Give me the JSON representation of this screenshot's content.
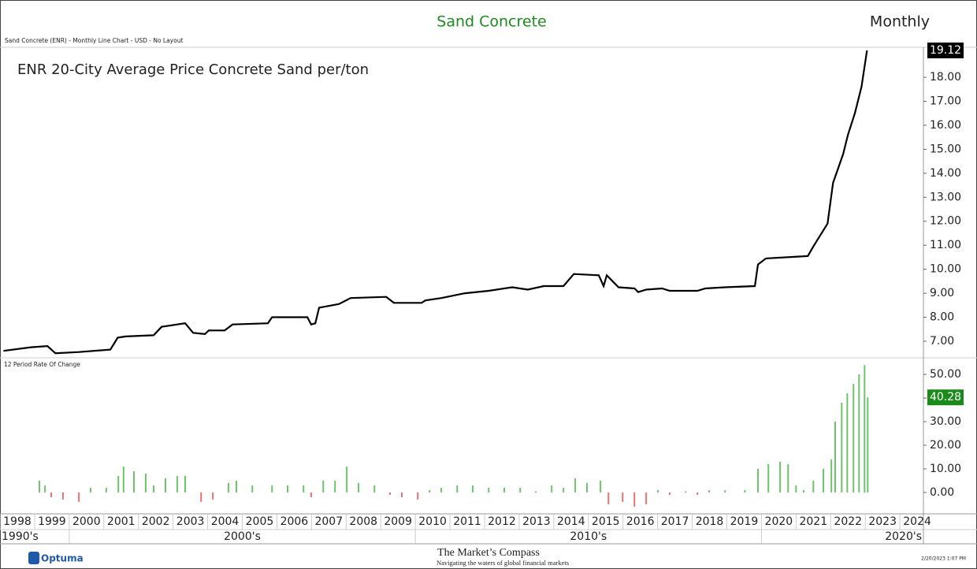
{
  "header": {
    "chart_title": "Sand Concrete",
    "period": "Monthly",
    "info": "Sand Concrete (ENR) - Monthly Line Chart - USD - No Layout"
  },
  "chart_data": [
    {
      "type": "line",
      "title": "ENR 20-City Average Price Concrete Sand per/ton",
      "color": "#000000",
      "xlim": [
        1998,
        2024.68
      ],
      "ylim": [
        6.31,
        19.25
      ],
      "yticks": [
        {
          "value": 7,
          "label": "7.00"
        },
        {
          "value": 8,
          "label": "8.00"
        },
        {
          "value": 9,
          "label": "9.00"
        },
        {
          "value": 10,
          "label": "10.00"
        },
        {
          "value": 11,
          "label": "11.00"
        },
        {
          "value": 12,
          "label": "12.00"
        },
        {
          "value": 13,
          "label": "13.00"
        },
        {
          "value": 14,
          "label": "14.00"
        },
        {
          "value": 15,
          "label": "15.00"
        },
        {
          "value": 16,
          "label": "16.00"
        },
        {
          "value": 17,
          "label": "17.00"
        },
        {
          "value": 18,
          "label": "18.00"
        }
      ],
      "last_value_color": "#000000",
      "x": [
        1998.1,
        1998.9,
        1999.37,
        1999.6,
        2000.28,
        2001.19,
        2001.4,
        2001.64,
        2002.44,
        2002.67,
        2003.35,
        2003.58,
        2003.92,
        2004.03,
        2004.49,
        2004.72,
        2005.74,
        2005.86,
        2006.88,
        2006.99,
        2007.11,
        2007.22,
        2007.79,
        2008.13,
        2009.16,
        2009.38,
        2010.18,
        2010.29,
        2010.75,
        2011.43,
        2012.12,
        2012.8,
        2013.25,
        2013.71,
        2014.28,
        2014.58,
        2015.3,
        2015.44,
        2015.53,
        2015.87,
        2016.33,
        2016.44,
        2016.67,
        2017.13,
        2017.35,
        2018.15,
        2018.38,
        2018.95,
        2019.81,
        2019.9,
        2020.13,
        2021.34,
        2021.5,
        2021.91,
        2022.07,
        2022.36,
        2022.5,
        2022.7,
        2022.89,
        2023.05
      ],
      "values": [
        6.6,
        6.75,
        6.8,
        6.5,
        6.55,
        6.65,
        7.15,
        7.2,
        7.25,
        7.6,
        7.75,
        7.35,
        7.3,
        7.45,
        7.45,
        7.7,
        7.75,
        8.0,
        8.0,
        7.7,
        7.75,
        8.4,
        8.55,
        8.8,
        8.85,
        8.6,
        8.6,
        8.7,
        8.8,
        9.0,
        9.1,
        9.25,
        9.15,
        9.3,
        9.3,
        9.8,
        9.75,
        9.3,
        9.75,
        9.25,
        9.2,
        9.05,
        9.15,
        9.2,
        9.1,
        9.1,
        9.2,
        9.25,
        9.3,
        10.2,
        10.45,
        10.55,
        10.95,
        11.9,
        13.6,
        14.8,
        15.6,
        16.5,
        17.6,
        19.12
      ]
    },
    {
      "type": "bar",
      "title": "12 Period Rate Of Change",
      "color": "#6cc36c",
      "negative_color": "#e57373",
      "last_value_color": "#1a8a1a",
      "xlim": [
        1998,
        2024.68
      ],
      "ylim": [
        -9.06,
        57.05
      ],
      "yticks": [
        {
          "value": 0,
          "label": "0.00"
        },
        {
          "value": 10,
          "label": "10.00"
        },
        {
          "value": 20,
          "label": "20.00"
        },
        {
          "value": 30,
          "label": "30.00"
        },
        {
          "value": 40,
          "label": "40.00"
        },
        {
          "value": 50,
          "label": "50.00"
        }
      ],
      "x": [
        1999.14,
        1999.3,
        1999.48,
        1999.82,
        2000.28,
        2000.62,
        2001.07,
        2001.42,
        2001.57,
        2001.87,
        2002.21,
        2002.44,
        2002.78,
        2003.12,
        2003.35,
        2003.81,
        2004.15,
        2004.6,
        2004.83,
        2005.29,
        2005.86,
        2006.31,
        2006.77,
        2006.99,
        2007.34,
        2007.68,
        2008.02,
        2008.36,
        2008.82,
        2009.27,
        2009.61,
        2010.07,
        2010.41,
        2010.75,
        2011.21,
        2011.66,
        2012.12,
        2012.57,
        2013.03,
        2013.48,
        2013.94,
        2014.28,
        2014.62,
        2014.96,
        2015.35,
        2015.58,
        2015.99,
        2016.33,
        2016.67,
        2017.01,
        2017.35,
        2017.81,
        2018.15,
        2018.49,
        2018.95,
        2019.52,
        2019.9,
        2020.2,
        2020.54,
        2020.77,
        2021.0,
        2021.22,
        2021.5,
        2021.79,
        2022.02,
        2022.13,
        2022.32,
        2022.48,
        2022.66,
        2022.82,
        2022.98,
        2023.07
      ],
      "values": [
        5,
        3,
        -2,
        -3,
        -4,
        2,
        2,
        7,
        11,
        9,
        8,
        3,
        6,
        7,
        7,
        -4,
        -3,
        4,
        5,
        3,
        3,
        3,
        3,
        -2,
        5,
        5,
        11,
        4,
        3,
        -1,
        -2,
        -3,
        1,
        2,
        3,
        3,
        2,
        2,
        2,
        0.5,
        3,
        2,
        6,
        4,
        5,
        -5,
        -4,
        -6,
        -5,
        1,
        -1,
        0.5,
        -1,
        1,
        1,
        1,
        10,
        12,
        13,
        12,
        3,
        1,
        5,
        10,
        14,
        30,
        38,
        42,
        46,
        50,
        54,
        40.28
      ],
      "xticks": [
        1998,
        1999,
        2000,
        2001,
        2002,
        2003,
        2004,
        2005,
        2006,
        2007,
        2008,
        2009,
        2010,
        2011,
        2012,
        2013,
        2014,
        2015,
        2016,
        2017,
        2018,
        2019,
        2020,
        2021,
        2022,
        2023,
        2024
      ],
      "decades": [
        {
          "value": 1990,
          "label": "1990's"
        },
        {
          "value": 2000,
          "label": "2000's"
        },
        {
          "value": 2010,
          "label": "2010's"
        },
        {
          "value": 2020,
          "label": "2020's"
        }
      ]
    }
  ],
  "footer": {
    "brand": "Optuma",
    "publisher": "The Market’s Compass",
    "tagline": "Navigating the waters of global financial markets",
    "timestamp": "2/20/2023 1:07 PM"
  }
}
